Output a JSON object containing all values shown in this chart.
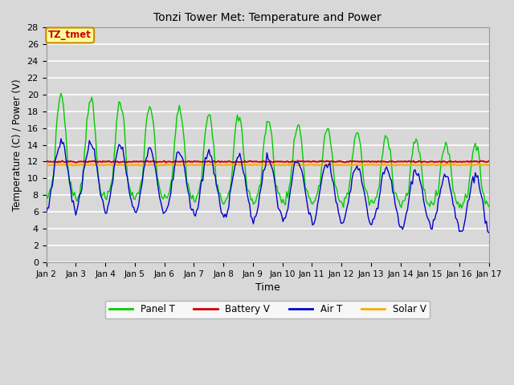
{
  "title": "Tonzi Tower Met: Temperature and Power",
  "xlabel": "Time",
  "ylabel": "Temperature (C) / Power (V)",
  "ylim": [
    0,
    28
  ],
  "yticks": [
    0,
    2,
    4,
    6,
    8,
    10,
    12,
    14,
    16,
    18,
    20,
    22,
    24,
    26,
    28
  ],
  "bg_color": "#d8d8d8",
  "plot_bg_color": "#d8d8d8",
  "grid_color": "#ffffff",
  "legend_items": [
    "Panel T",
    "Battery V",
    "Air T",
    "Solar V"
  ],
  "legend_colors": [
    "#00cc00",
    "#cc0000",
    "#0000cc",
    "#ffaa00"
  ],
  "annotation_text": "TZ_tmet",
  "annotation_fg": "#cc0000",
  "annotation_bg": "#ffff99",
  "annotation_border": "#cc8800",
  "figsize": [
    6.4,
    4.8
  ],
  "dpi": 100
}
